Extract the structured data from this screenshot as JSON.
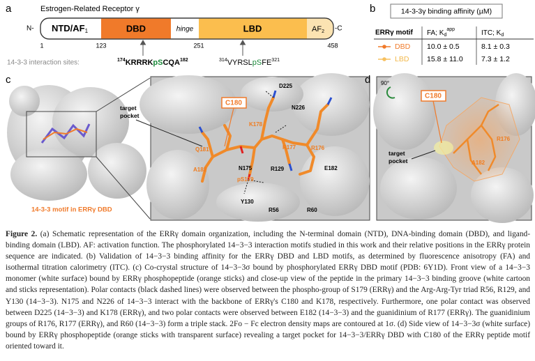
{
  "panel_a": {
    "label": "a",
    "title": "Estrogen-Related Receptor γ",
    "n_term": "N-",
    "c_term": "-C",
    "domains": [
      {
        "name": "NTD/AF",
        "sub": "1"
      },
      {
        "name": "DBD"
      },
      {
        "name": "hinge"
      },
      {
        "name": "LBD"
      },
      {
        "name": "AF",
        "sub": "2"
      }
    ],
    "positions": [
      1,
      123,
      251,
      458
    ],
    "sites_label": "14-3-3 interaction sites:",
    "sites": [
      {
        "start": "174",
        "pre": "KRRRK",
        "phospho": "pS",
        "post": "CQA",
        "end": "182"
      },
      {
        "start": "314",
        "pre": "VYRSL",
        "phospho": "pS",
        "post": "FE",
        "end": "321"
      }
    ]
  },
  "panel_b": {
    "label": "b",
    "title": "14-3-3γ binding affinity (µM)",
    "header": {
      "motif": "ERRγ motif",
      "fa": "FA; K",
      "fa_sub": "d",
      "fa_sup": "app",
      "itc": "ITC; K",
      "itc_sub": "d"
    },
    "rows": [
      [
        "DBD",
        "10.0 ± 0.5",
        "8.1 ± 0.3"
      ],
      [
        "LBD",
        "15.8 ± 11.0",
        "7.3 ± 1.2"
      ]
    ]
  },
  "panel_c": {
    "label": "c",
    "caption": "14-3-3 motif in ERRγ DBD",
    "pocket": [
      "target",
      "pocket"
    ],
    "residues": [
      "C180",
      "D225",
      "N226",
      "K178",
      "Q181",
      "R177",
      "R176",
      "A182",
      "N175",
      "R129",
      "pS179",
      "E182",
      "Y130",
      "R56",
      "R60"
    ]
  },
  "panel_d": {
    "label": "d",
    "rotation": "90°",
    "pocket": [
      "target",
      "pocket"
    ],
    "residues": [
      "C180",
      "R176",
      "A182"
    ]
  },
  "caption": {
    "label": "Figure 2.",
    "text": "(a) Schematic representation of the ERRγ domain organization, including the N-terminal domain (NTD), DNA-binding domain (DBD), and ligand-binding domain (LBD). AF: activation function. The phosphorylated 14−3−3 interaction motifs studied in this work and their relative positions in the ERRγ protein sequence are indicated. (b) Validation of 14−3−3 binding affinity for the ERRγ DBD and LBD motifs, as determined by fluorescence anisotropy (FA) and isothermal titration calorimetry (ITC). (c) Co-crystal structure of 14−3−3σ bound by phosphorylated ERRγ DBD motif (PDB: 6Y1D). Front view of a 14−3−3 monomer (white surface) bound by ERRγ phosphopeptide (orange sticks) and close-up view of the peptide in the primary 14−3−3 binding groove (white cartoon and sticks representation). Polar contacts (black dashed lines) were observed between the phospho-group of S179 (ERRγ) and the Arg-Arg-Tyr triad R56, R129, and Y130 (14−3−3). N175 and N226 of 14−3−3 interact with the backbone of ERRγ's C180 and K178, respectively. Furthermore, one polar contact was observed between D225 (14−3−3) and K178 (ERRγ), and two polar contacts were observed between E182 (14−3−3) and the guanidinium of R177 (ERRγ). The guanidinium groups of R176, R177 (ERRγ), and R60 (14−3−3) form a triple stack. 2Fo − Fc electron density maps are contoured at 1σ. (d) Side view of 14−3−3σ (white surface) bound by ERRγ phosphopeptide (orange sticks with transparent surface) revealing a target pocket for 14−3−3/ERRγ DBD with C180 of the ERRγ peptide motif oriented toward it."
  }
}
